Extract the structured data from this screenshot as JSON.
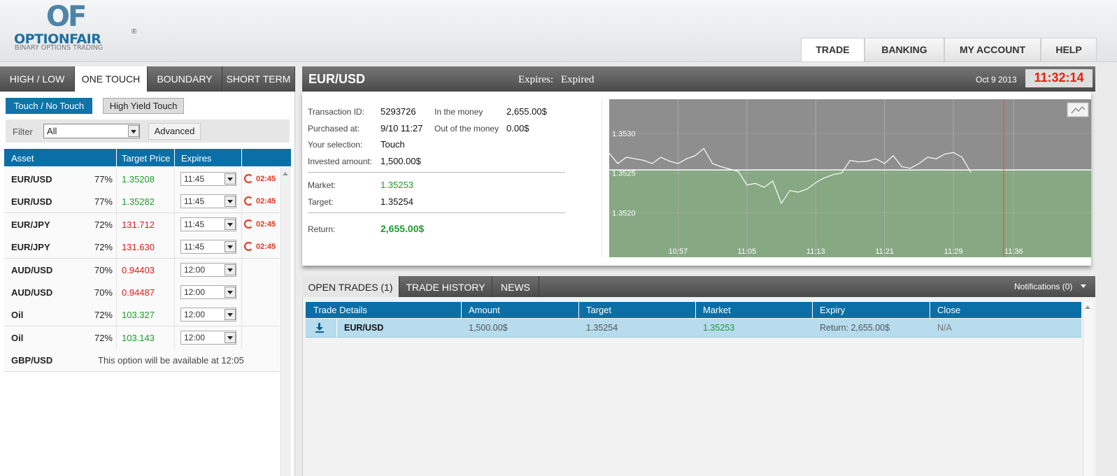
{
  "logo": {
    "mark": "OF",
    "name": "OPTIONFAIR",
    "reg": "®",
    "tagline": "BINARY OPTIONS TRADING"
  },
  "nav": [
    "TRADE",
    "BANKING",
    "MY ACCOUNT",
    "HELP"
  ],
  "option_tabs": [
    "HIGH / LOW",
    "ONE TOUCH",
    "BOUNDARY",
    "SHORT TERM"
  ],
  "sub_tabs": [
    "Touch / No Touch",
    "High Yield Touch"
  ],
  "filter": {
    "label": "Filter",
    "value": "All",
    "advanced": "Advanced"
  },
  "asset_table": {
    "headers": [
      "Asset",
      "Target Price",
      "Expires"
    ],
    "rows": [
      {
        "asset": "EUR/USD",
        "payout": "77%",
        "target": "1.35208",
        "color": "#1f9a2a",
        "expires": "11:45",
        "countdown": "02:45"
      },
      {
        "asset": "EUR/USD",
        "payout": "77%",
        "target": "1.35282",
        "color": "#1f9a2a",
        "expires": "11:45",
        "countdown": "02:45"
      },
      {
        "asset": "EUR/JPY",
        "payout": "72%",
        "target": "131.712",
        "color": "#e01b1b",
        "expires": "11:45",
        "countdown": "02:45"
      },
      {
        "asset": "EUR/JPY",
        "payout": "72%",
        "target": "131.630",
        "color": "#e01b1b",
        "expires": "11:45",
        "countdown": "02:45"
      },
      {
        "asset": "AUD/USD",
        "payout": "70%",
        "target": "0.94403",
        "color": "#e01b1b",
        "expires": "12:00"
      },
      {
        "asset": "AUD/USD",
        "payout": "70%",
        "target": "0.94487",
        "color": "#e01b1b",
        "expires": "12:00"
      },
      {
        "asset": "Oil",
        "payout": "72%",
        "target": "103.327",
        "color": "#1f9a2a",
        "expires": "12:00"
      },
      {
        "asset": "Oil",
        "payout": "72%",
        "target": "103.143",
        "color": "#1f9a2a",
        "expires": "12:00"
      }
    ],
    "unavailable": {
      "asset": "GBP/USD",
      "message": "This option will be available at 12:05"
    }
  },
  "trade_header": {
    "asset": "EUR/USD",
    "expires_label": "Expires:",
    "expires_value": "Expired",
    "date": "Oct 9 2013",
    "time": "11:32:14"
  },
  "details": {
    "left": [
      [
        "Transaction ID:",
        "5293726"
      ],
      [
        "Purchased at:",
        "9/10 11:27"
      ],
      [
        "Your selection:",
        "Touch"
      ],
      [
        "Invested amount:",
        "1,500.00$"
      ]
    ],
    "right": [
      [
        "In the money",
        "2,655.00$"
      ],
      [
        "Out of the money",
        "0.00$"
      ]
    ],
    "market": [
      "Market:",
      "1.35253"
    ],
    "target": [
      "Target:",
      "1.35254"
    ],
    "return": [
      "Return:",
      "2,655.00$"
    ]
  },
  "chart_data": {
    "type": "line",
    "color": "#ffffff",
    "x": [
      "10:49",
      "10:50",
      "10:51",
      "10:52",
      "10:53",
      "10:54",
      "10:55",
      "10:56",
      "10:57",
      "10:58",
      "10:59",
      "11:00",
      "11:01",
      "11:02",
      "11:03",
      "11:04",
      "11:05",
      "11:06",
      "11:07",
      "11:08",
      "11:09",
      "11:10",
      "11:11",
      "11:12",
      "11:13",
      "11:14",
      "11:15",
      "11:16",
      "11:17",
      "11:18",
      "11:19",
      "11:20",
      "11:21",
      "11:22",
      "11:23",
      "11:24",
      "11:25",
      "11:26",
      "11:27",
      "11:28",
      "11:29",
      "11:30",
      "11:31"
    ],
    "values": [
      1.35275,
      1.35262,
      1.3527,
      1.35268,
      1.35266,
      1.35262,
      1.3527,
      1.35265,
      1.35262,
      1.35268,
      1.35272,
      1.35281,
      1.35262,
      1.35258,
      1.35255,
      1.35252,
      1.35235,
      1.35237,
      1.35232,
      1.3524,
      1.35212,
      1.35228,
      1.35226,
      1.3523,
      1.35238,
      1.35244,
      1.35248,
      1.3525,
      1.35266,
      1.35264,
      1.35265,
      1.35268,
      1.35262,
      1.35272,
      1.35258,
      1.35256,
      1.35262,
      1.3527,
      1.35268,
      1.35274,
      1.35276,
      1.3527,
      1.35251
    ],
    "xlim": [
      "10:49",
      "11:45"
    ],
    "xticks": [
      "10:57",
      "11:05",
      "11:13",
      "11:21",
      "11:29",
      "11:36"
    ],
    "ylim": [
      1.35144,
      1.35343
    ],
    "yticks": [
      {
        "value": 1.353,
        "label": "1.3530"
      },
      1.3525,
      {
        "value": 1.352,
        "label": "1.3520"
      }
    ],
    "grid": true
  },
  "bottom_tabs": [
    "OPEN TRADES (1)",
    "TRADE HISTORY",
    "NEWS"
  ],
  "notifications": "Notifications (0)",
  "open_trades": {
    "headers": [
      "Trade Details",
      "Amount",
      "Target",
      "Market",
      "Expiry",
      "Close"
    ],
    "rows": [
      [
        "EUR/USD",
        "1,500.00$",
        "1.35254",
        "1.35253",
        "Return: 2,655.00$",
        "N/A"
      ]
    ]
  }
}
